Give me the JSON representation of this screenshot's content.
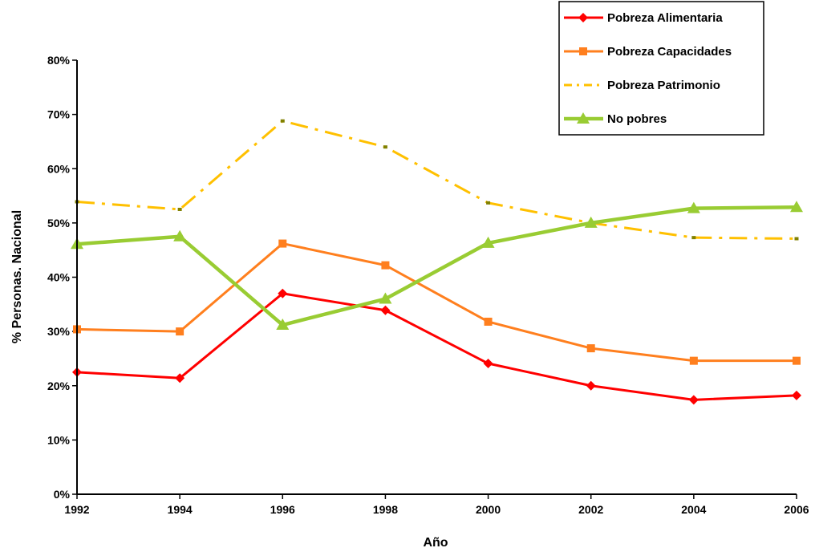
{
  "chart_data": {
    "type": "line",
    "title": "",
    "xlabel": "Año",
    "ylabel": "% Personas. Nacional",
    "x": [
      "1992",
      "1994",
      "1996",
      "1998",
      "2000",
      "2002",
      "2004",
      "2006"
    ],
    "ylim": [
      0,
      80
    ],
    "yticks": [
      "0%",
      "10%",
      "20%",
      "30%",
      "40%",
      "50%",
      "60%",
      "70%",
      "80%"
    ],
    "grid": false,
    "legend_position": "top-right",
    "series": [
      {
        "name": "Pobreza Alimentaria",
        "color": "#FF0000",
        "marker": "diamond",
        "style": "solid",
        "values": [
          22.5,
          21.4,
          37.0,
          33.9,
          24.1,
          20.0,
          17.4,
          18.2
        ]
      },
      {
        "name": "Pobreza Capacidades",
        "color": "#FF7F1E",
        "marker": "square",
        "style": "solid",
        "values": [
          30.4,
          30.0,
          46.2,
          42.2,
          31.8,
          26.9,
          24.6,
          24.6
        ]
      },
      {
        "name": "Pobreza Patrimonio",
        "color": "#FFC000",
        "marker": "none",
        "style": "dashdot",
        "values": [
          53.9,
          52.5,
          68.8,
          64.0,
          53.7,
          50.0,
          47.3,
          47.1
        ]
      },
      {
        "name": "No pobres",
        "color": "#99CC33",
        "marker": "triangle",
        "style": "solid",
        "values": [
          46.1,
          47.5,
          31.2,
          36.0,
          46.3,
          50.0,
          52.7,
          52.9
        ]
      }
    ]
  }
}
